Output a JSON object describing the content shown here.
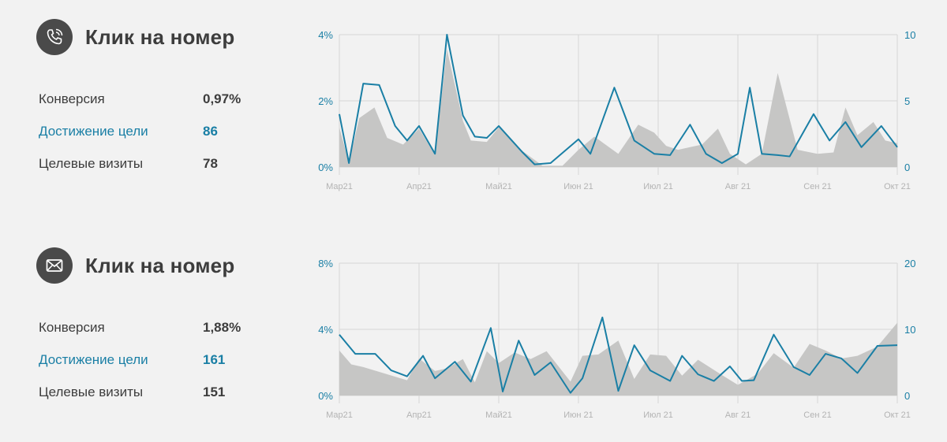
{
  "colors": {
    "background": "#f2f2f2",
    "text": "#3d3d3d",
    "accent": "#1a7fa5",
    "area": "#c6c6c5",
    "grid": "#d6d6d6",
    "badge": "#4a4a4a"
  },
  "panels": [
    {
      "icon": "phone-icon",
      "title": "Клик на номер",
      "metrics": [
        {
          "label": "Конверсия",
          "value": "0,97%",
          "accent": false
        },
        {
          "label": "Достижение цели",
          "value": "86",
          "accent": true
        },
        {
          "label": "Целевые визиты",
          "value": "78",
          "accent": false
        }
      ]
    },
    {
      "icon": "envelope-icon",
      "title": "Клик на номер",
      "metrics": [
        {
          "label": "Конверсия",
          "value": "1,88%",
          "accent": false
        },
        {
          "label": "Достижение цели",
          "value": "161",
          "accent": true
        },
        {
          "label": "Целевые визиты",
          "value": "151",
          "accent": false
        }
      ]
    }
  ],
  "chart_data": [
    {
      "type": "area",
      "categories": [
        "Мар21",
        "Апр21",
        "Май21",
        "Июн 21",
        "Июл 21",
        "Авг 21",
        "Сен 21",
        "Окт 21"
      ],
      "y_left": {
        "ticks": [
          "0%",
          "2%",
          "4%"
        ],
        "range": [
          0,
          4
        ]
      },
      "y_right": {
        "ticks": [
          "0",
          "5",
          "10"
        ],
        "range": [
          0,
          10
        ]
      },
      "x_range": [
        0,
        7
      ],
      "grid": true,
      "series": [
        {
          "role": "area",
          "axis": "right",
          "x": [
            0,
            0.12,
            0.25,
            0.44,
            0.6,
            0.8,
            1.0,
            1.2,
            1.35,
            1.55,
            1.65,
            1.85,
            2.0,
            2.3,
            2.55,
            2.8,
            3.0,
            3.2,
            3.5,
            3.75,
            3.95,
            4.1,
            4.25,
            4.4,
            4.55,
            4.75,
            4.9,
            5.1,
            5.3,
            5.5,
            5.75,
            6.0,
            6.2,
            6.35,
            6.5,
            6.7,
            6.85,
            7.0
          ],
          "values": [
            3.0,
            0.3,
            3.7,
            4.5,
            2.2,
            1.7,
            2.9,
            0.9,
            8.9,
            3.5,
            2.0,
            1.9,
            3.0,
            1.2,
            0.1,
            0.1,
            1.3,
            2.3,
            1.0,
            3.2,
            2.6,
            1.6,
            1.3,
            1.5,
            1.7,
            2.9,
            1.0,
            0.2,
            1.0,
            7.1,
            1.3,
            1.0,
            1.1,
            4.5,
            2.4,
            3.4,
            2.0,
            1.8
          ]
        },
        {
          "role": "line",
          "axis": "right",
          "x": [
            0,
            0.12,
            0.3,
            0.5,
            0.7,
            0.85,
            1.0,
            1.2,
            1.35,
            1.55,
            1.7,
            1.85,
            2.0,
            2.3,
            2.45,
            2.65,
            3.0,
            3.15,
            3.45,
            3.7,
            3.95,
            4.15,
            4.4,
            4.6,
            4.8,
            5.0,
            5.15,
            5.3,
            5.5,
            5.65,
            5.95,
            6.15,
            6.35,
            6.55,
            6.8,
            7.0
          ],
          "values": [
            4.0,
            0.3,
            6.3,
            6.2,
            3.1,
            2.0,
            3.1,
            1.0,
            10.0,
            3.9,
            2.3,
            2.2,
            3.1,
            1.1,
            0.2,
            0.3,
            2.1,
            1.0,
            6.0,
            2.0,
            1.0,
            0.9,
            3.2,
            1.0,
            0.3,
            1.0,
            6.0,
            1.0,
            0.9,
            0.8,
            4.0,
            2.0,
            3.4,
            1.5,
            3.1,
            1.5
          ]
        }
      ]
    },
    {
      "type": "area",
      "categories": [
        "Мар21",
        "Апр21",
        "Май21",
        "Июн 21",
        "Июл 21",
        "Авг 21",
        "Сен 21",
        "Окт 21"
      ],
      "y_left": {
        "ticks": [
          "0%",
          "4%",
          "8%"
        ],
        "range": [
          0,
          8
        ]
      },
      "y_right": {
        "ticks": [
          "0",
          "10",
          "20"
        ],
        "range": [
          0,
          20
        ]
      },
      "x_range": [
        0,
        7
      ],
      "grid": true,
      "series": [
        {
          "role": "area",
          "axis": "right",
          "x": [
            0,
            0.15,
            0.3,
            0.55,
            0.85,
            1.0,
            1.2,
            1.35,
            1.55,
            1.7,
            1.85,
            2.0,
            2.2,
            2.4,
            2.6,
            2.9,
            3.05,
            3.25,
            3.5,
            3.7,
            3.9,
            4.1,
            4.3,
            4.5,
            4.8,
            5.0,
            5.25,
            5.45,
            5.7,
            5.9,
            6.1,
            6.3,
            6.5,
            6.75,
            7.0
          ],
          "values": [
            6.8,
            4.7,
            4.3,
            3.4,
            2.3,
            5.6,
            3.7,
            4.1,
            5.5,
            2.0,
            6.7,
            4.9,
            6.5,
            5.5,
            6.7,
            2.1,
            6.0,
            6.2,
            8.3,
            2.5,
            6.2,
            6.0,
            3.0,
            5.4,
            3.1,
            1.6,
            3.3,
            6.4,
            4.2,
            7.8,
            6.8,
            5.6,
            6.0,
            7.4,
            11.0
          ]
        },
        {
          "role": "line",
          "axis": "right",
          "x": [
            0,
            0.2,
            0.45,
            0.65,
            0.85,
            1.05,
            1.2,
            1.45,
            1.65,
            1.9,
            2.05,
            2.25,
            2.45,
            2.65,
            2.9,
            3.05,
            3.3,
            3.5,
            3.7,
            3.9,
            4.15,
            4.3,
            4.5,
            4.7,
            4.9,
            5.05,
            5.2,
            5.45,
            5.7,
            5.9,
            6.1,
            6.3,
            6.5,
            6.75,
            7.0
          ],
          "values": [
            9.2,
            6.3,
            6.3,
            3.8,
            2.9,
            6.0,
            2.6,
            5.1,
            2.1,
            10.2,
            0.6,
            8.3,
            3.1,
            5.0,
            0.4,
            2.6,
            11.8,
            0.7,
            7.6,
            3.8,
            2.2,
            6.0,
            3.2,
            2.2,
            4.4,
            2.2,
            2.3,
            9.2,
            4.3,
            3.1,
            6.3,
            5.6,
            3.4,
            7.5,
            7.6
          ]
        }
      ]
    }
  ]
}
